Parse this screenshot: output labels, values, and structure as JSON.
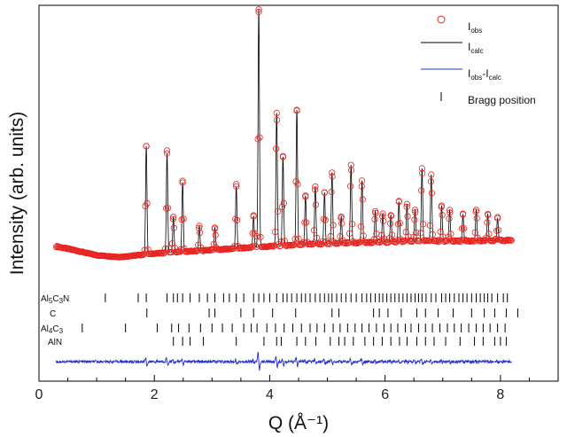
{
  "chart_data": {
    "type": "line",
    "title": "",
    "xlabel": "Q (Å⁻¹)",
    "ylabel": "Intensity (arb. units)",
    "xlim": [
      0,
      9
    ],
    "x_ticks": [
      0,
      2,
      4,
      6,
      8
    ],
    "grid": false,
    "legend_position": "top-right",
    "legend": {
      "obs": {
        "main": "I",
        "sub": "obs"
      },
      "calc": {
        "main": "I",
        "sub": "calc"
      },
      "diff": {
        "main": "I",
        "sub1": "obs",
        "mid": "-I",
        "sub2": "calc"
      },
      "bragg": "Bragg position"
    },
    "colors": {
      "observed": "#e8231f",
      "calculated": "#000000",
      "difference": "#1f2fd1",
      "bragg": "#000000"
    },
    "background": {
      "x": [
        0.3,
        0.6,
        1.0,
        1.4,
        1.7,
        2.0,
        2.5,
        3.0,
        3.5,
        4.0,
        4.5,
        5.0,
        5.5,
        6.0,
        6.5,
        7.0,
        7.5,
        8.2
      ],
      "y": [
        22,
        18,
        12,
        10,
        12,
        14,
        16,
        18,
        20,
        22,
        24,
        25,
        26,
        27,
        28,
        28,
        28,
        29
      ]
    },
    "peaks": {
      "x": [
        1.86,
        2.22,
        2.33,
        2.49,
        2.78,
        3.05,
        3.42,
        3.72,
        3.81,
        4.12,
        4.23,
        4.47,
        4.62,
        4.79,
        4.95,
        5.08,
        5.24,
        5.41,
        5.6,
        5.83,
        5.96,
        6.1,
        6.24,
        6.38,
        6.52,
        6.64,
        6.8,
        6.98,
        7.12,
        7.35,
        7.58,
        7.78,
        7.95
      ],
      "y": [
        122,
        112,
        40,
        78,
        28,
        25,
        70,
        35,
        268,
        150,
        100,
        152,
        55,
        65,
        58,
        80,
        30,
        88,
        70,
        35,
        32,
        30,
        45,
        42,
        35,
        82,
        75,
        40,
        35,
        30,
        35,
        30,
        25
      ]
    },
    "phases": [
      {
        "name": {
          "parts": [
            "Al",
            "5",
            "C",
            "3",
            "N"
          ]
        },
        "positions": [
          1.15,
          1.72,
          1.86,
          2.22,
          2.33,
          2.4,
          2.49,
          2.62,
          2.78,
          2.92,
          3.05,
          3.2,
          3.3,
          3.42,
          3.55,
          3.72,
          3.81,
          3.9,
          4.0,
          4.12,
          4.23,
          4.3,
          4.38,
          4.47,
          4.55,
          4.62,
          4.7,
          4.79,
          4.87,
          4.95,
          5.02,
          5.08,
          5.16,
          5.24,
          5.32,
          5.41,
          5.5,
          5.6,
          5.68,
          5.75,
          5.83,
          5.9,
          5.96,
          6.03,
          6.1,
          6.17,
          6.24,
          6.31,
          6.38,
          6.45,
          6.52,
          6.58,
          6.64,
          6.71,
          6.8,
          6.88,
          6.98,
          7.05,
          7.12,
          7.2,
          7.28,
          7.35,
          7.42,
          7.5,
          7.58,
          7.65,
          7.72,
          7.78,
          7.85,
          7.95,
          8.05,
          8.12
        ]
      },
      {
        "name": {
          "parts": [
            "C"
          ]
        },
        "positions": [
          1.87,
          2.95,
          3.05,
          3.5,
          3.72,
          4.05,
          4.45,
          5.08,
          5.2,
          5.8,
          5.9,
          6.05,
          6.28,
          6.55,
          6.7,
          6.92,
          7.18,
          7.5,
          7.72,
          7.9,
          8.1,
          8.3
        ]
      },
      {
        "name": {
          "parts": [
            "Al",
            "4",
            "C",
            "3"
          ]
        },
        "positions": [
          0.75,
          1.5,
          2.05,
          2.3,
          2.42,
          2.6,
          2.8,
          3.0,
          3.18,
          3.35,
          3.55,
          3.68,
          3.78,
          3.95,
          4.1,
          4.25,
          4.4,
          4.55,
          4.7,
          4.82,
          4.95,
          5.1,
          5.22,
          5.35,
          5.48,
          5.6,
          5.72,
          5.85,
          5.98,
          6.1,
          6.22,
          6.35,
          6.45,
          6.58,
          6.7,
          6.82,
          6.95,
          7.08,
          7.2,
          7.32,
          7.45,
          7.58,
          7.7,
          7.82,
          7.95,
          8.08
        ]
      },
      {
        "name": {
          "parts": [
            "AlN"
          ]
        },
        "positions": [
          2.33,
          2.49,
          2.62,
          2.85,
          3.42,
          3.9,
          4.12,
          4.2,
          4.47,
          4.62,
          4.8,
          5.05,
          5.2,
          5.3,
          5.45,
          5.65,
          5.8,
          5.95,
          6.1,
          6.25,
          6.38,
          6.55,
          6.7,
          6.85,
          7.05,
          7.3,
          7.55,
          7.7,
          7.9,
          8.0,
          8.1
        ]
      }
    ]
  }
}
